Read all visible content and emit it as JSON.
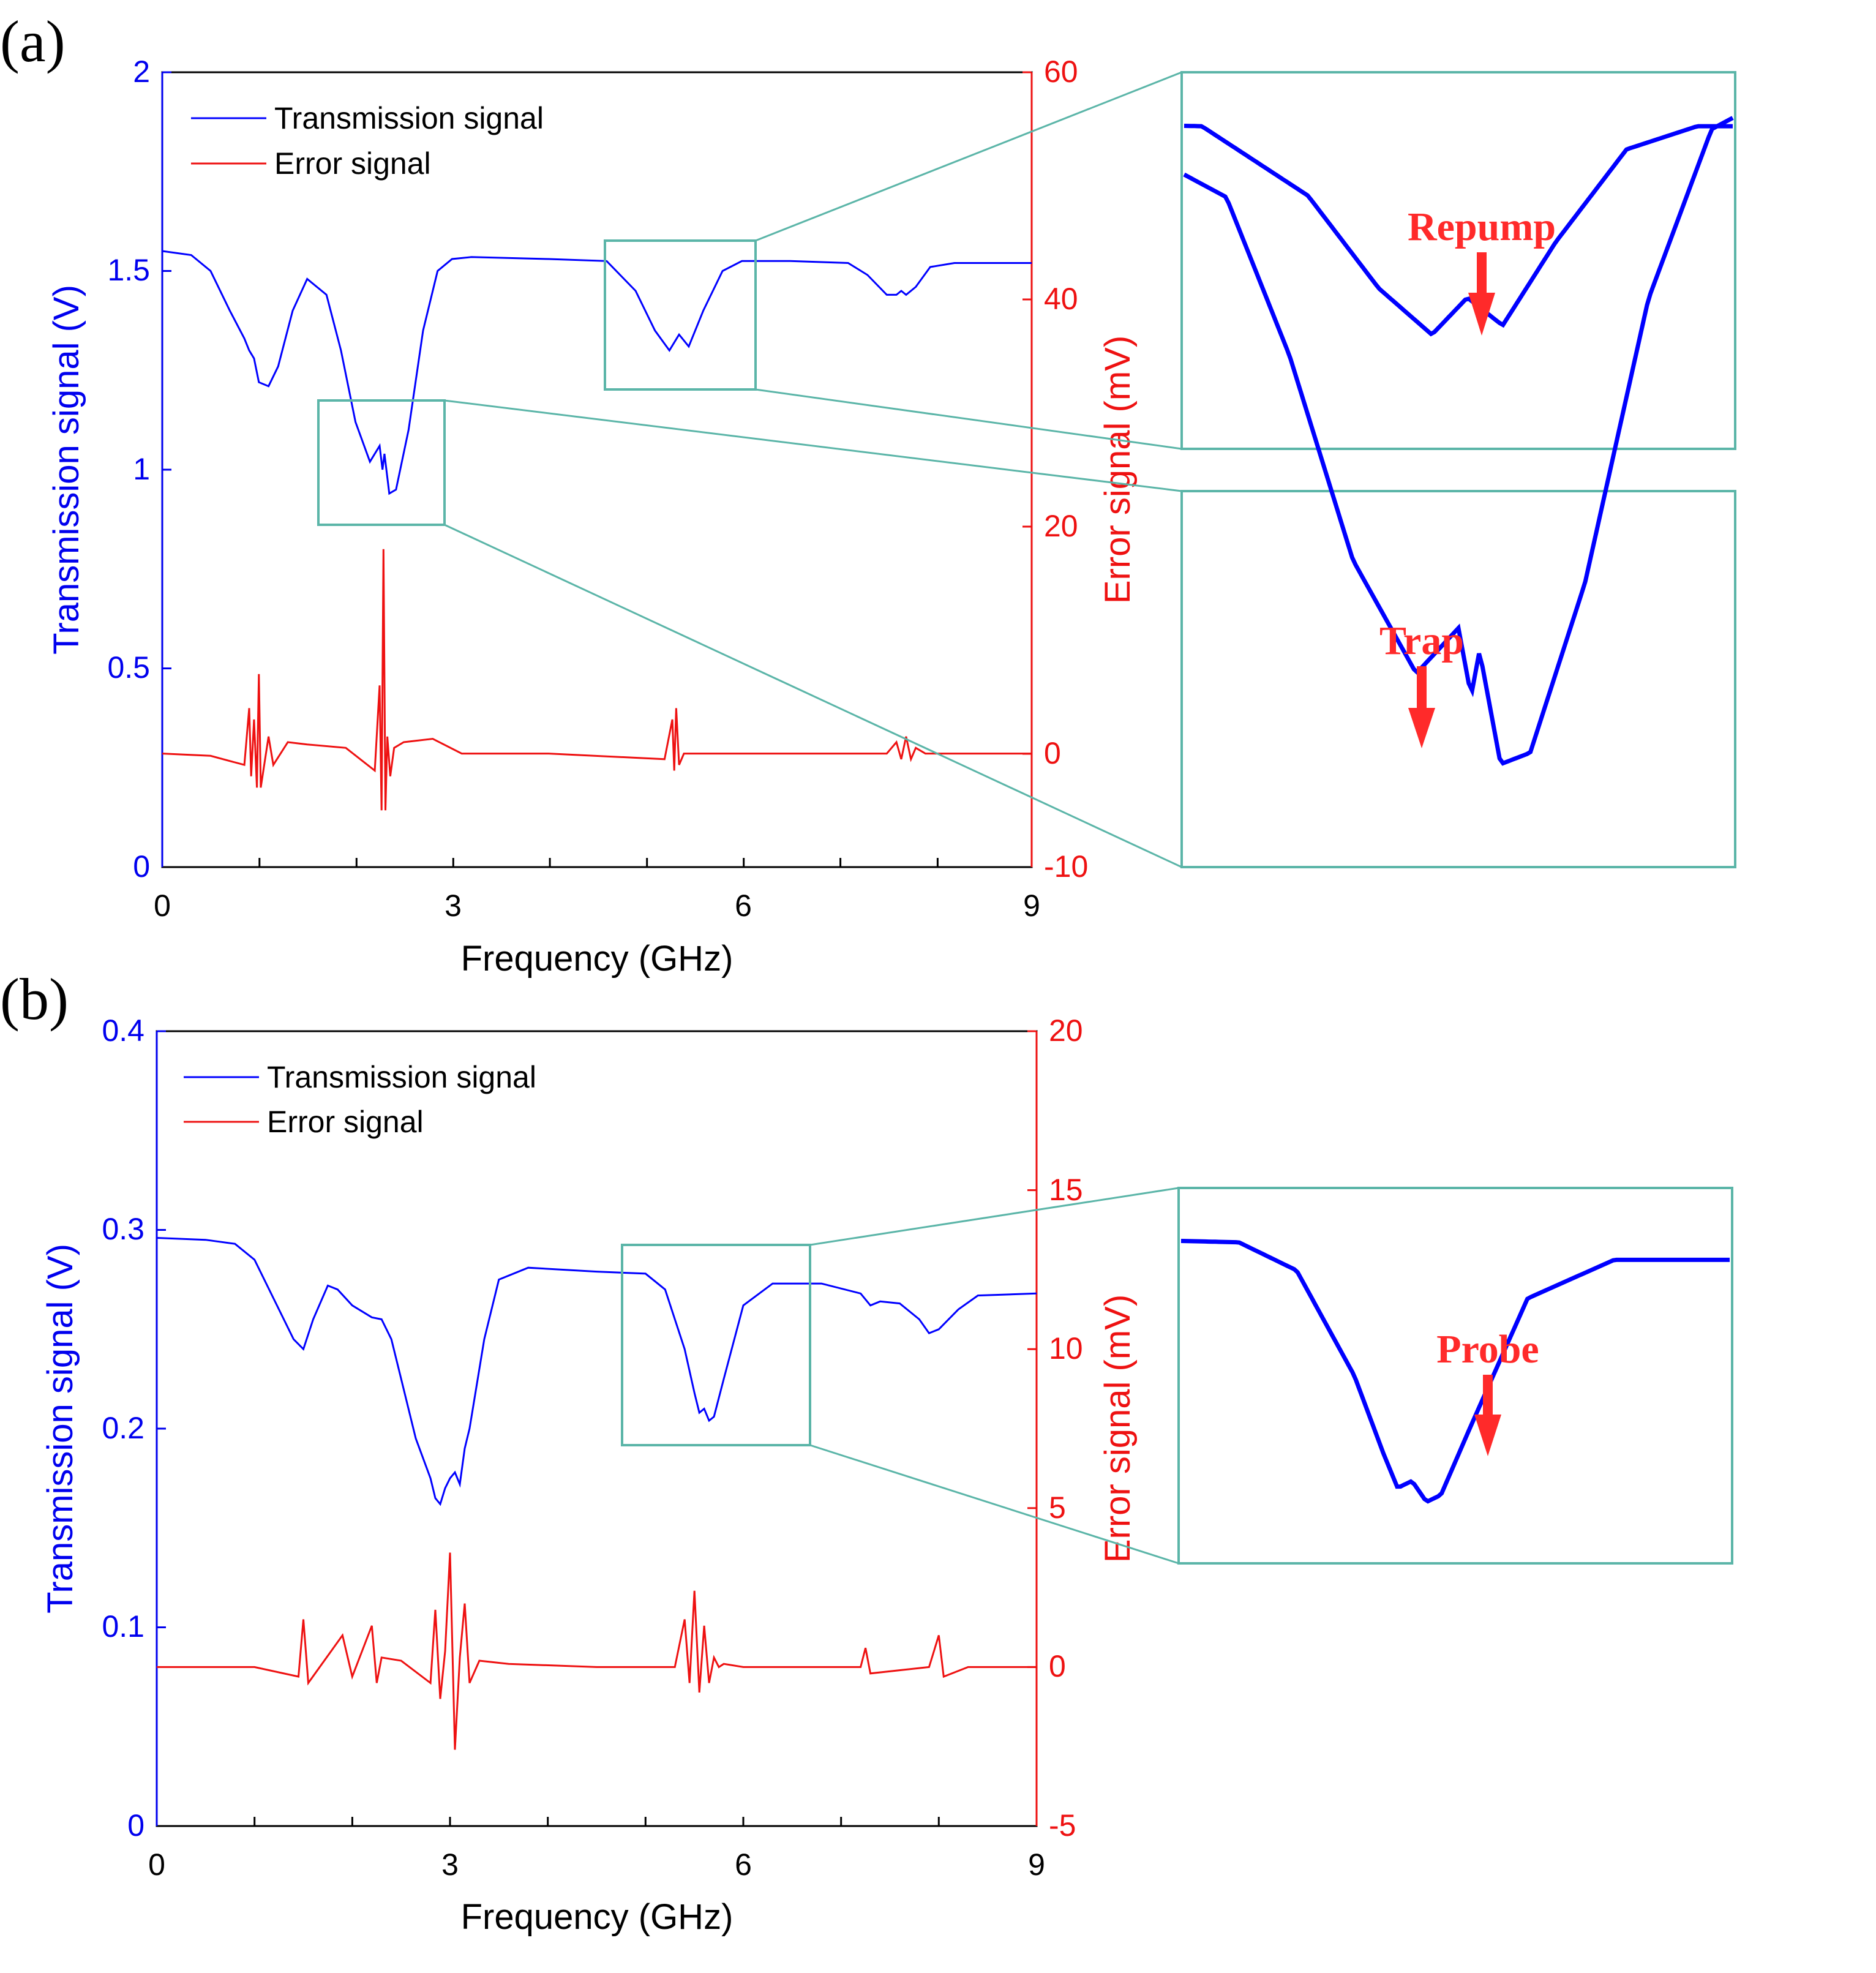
{
  "figure": {
    "panel_a_label": "(a)",
    "panel_b_label": "(b)"
  },
  "colors": {
    "transmission": "#0000ff",
    "error": "#ee1111",
    "inset_box": "#5bb5a8",
    "annotation": "#ff2a2a",
    "axis": "#000000"
  },
  "chart_data": [
    {
      "id": "a",
      "type": "line",
      "xlabel": "Frequency (GHz)",
      "ylabel_left": "Transmission signal (V)",
      "ylabel_right": "Error signal (mV)",
      "xlim": [
        0,
        9
      ],
      "ylim_left": [
        0,
        2
      ],
      "ylim_right": [
        -10,
        60
      ],
      "xticks": [
        "0",
        "3",
        "6",
        "9"
      ],
      "yticks_left": [
        "0",
        "0.5",
        "1",
        "1.5",
        "2"
      ],
      "yticks_right": [
        "-10",
        "0",
        "20",
        "40",
        "60"
      ],
      "legend_position": "top-left",
      "series": [
        {
          "name": "Transmission signal",
          "axis": "left",
          "x": [
            0,
            0.3,
            0.5,
            0.7,
            0.85,
            0.9,
            0.95,
            1.0,
            1.1,
            1.2,
            1.35,
            1.5,
            1.7,
            1.85,
            2.0,
            2.15,
            2.25,
            2.28,
            2.3,
            2.35,
            2.42,
            2.55,
            2.7,
            2.85,
            3.0,
            3.2,
            4.0,
            4.6,
            4.9,
            5.1,
            5.25,
            5.3,
            5.35,
            5.45,
            5.6,
            5.8,
            6.0,
            6.5,
            7.1,
            7.3,
            7.5,
            7.6,
            7.65,
            7.7,
            7.8,
            7.95,
            8.2,
            9.0
          ],
          "values": [
            1.55,
            1.54,
            1.5,
            1.4,
            1.33,
            1.3,
            1.28,
            1.22,
            1.21,
            1.26,
            1.4,
            1.48,
            1.44,
            1.3,
            1.12,
            1.02,
            1.06,
            1.0,
            1.04,
            0.94,
            0.95,
            1.1,
            1.35,
            1.5,
            1.53,
            1.535,
            1.53,
            1.525,
            1.45,
            1.35,
            1.3,
            1.32,
            1.34,
            1.31,
            1.4,
            1.5,
            1.525,
            1.525,
            1.52,
            1.49,
            1.44,
            1.44,
            1.45,
            1.44,
            1.46,
            1.51,
            1.52,
            1.52
          ]
        },
        {
          "name": "Error signal",
          "axis": "right",
          "x": [
            0,
            0.5,
            0.85,
            0.9,
            0.92,
            0.95,
            0.98,
            1.0,
            1.02,
            1.1,
            1.15,
            1.3,
            1.5,
            1.9,
            2.2,
            2.25,
            2.27,
            2.29,
            2.31,
            2.33,
            2.36,
            2.4,
            2.5,
            2.8,
            3.1,
            4.0,
            5.2,
            5.28,
            5.3,
            5.32,
            5.35,
            5.4,
            6.0,
            7.5,
            7.6,
            7.65,
            7.7,
            7.75,
            7.8,
            7.9,
            8.5,
            9.0
          ],
          "values": [
            0,
            -0.2,
            -1,
            4,
            -2,
            3,
            -3,
            7,
            -3,
            1.5,
            -1,
            1,
            0.8,
            0.5,
            -1.5,
            6,
            -5,
            18,
            -5,
            1.5,
            -2,
            0.5,
            1,
            1.3,
            0,
            0,
            -0.5,
            3,
            -1.5,
            4,
            -1,
            0,
            0,
            0,
            1,
            -0.5,
            1.5,
            -0.5,
            0.5,
            0,
            0,
            0
          ]
        }
      ],
      "insets": [
        {
          "label": "Repump",
          "xlim": [
            4.55,
            6.1
          ],
          "ylim": [
            1.19,
            1.57
          ]
        },
        {
          "label": "Trap",
          "xlim": [
            1.6,
            2.9
          ],
          "ylim": [
            0.86,
            1.17
          ]
        }
      ]
    },
    {
      "id": "b",
      "type": "line",
      "xlabel": "Frequency (GHz)",
      "ylabel_left": "Transmission signal (V)",
      "ylabel_right": "Error signal (mV)",
      "xlim": [
        0,
        9
      ],
      "ylim_left": [
        0,
        0.4
      ],
      "ylim_right": [
        -5,
        20
      ],
      "xticks": [
        "0",
        "3",
        "6",
        "9"
      ],
      "yticks_left": [
        "0",
        "0.1",
        "0.2",
        "0.3",
        "0.4"
      ],
      "yticks_right": [
        "-5",
        "0",
        "5",
        "10",
        "15",
        "20"
      ],
      "legend_position": "top-left",
      "series": [
        {
          "name": "Transmission signal",
          "axis": "left",
          "x": [
            0,
            0.5,
            0.8,
            1.0,
            1.2,
            1.4,
            1.5,
            1.6,
            1.75,
            1.85,
            2.0,
            2.2,
            2.3,
            2.4,
            2.5,
            2.65,
            2.8,
            2.85,
            2.9,
            2.95,
            3.0,
            3.05,
            3.1,
            3.15,
            3.2,
            3.35,
            3.5,
            3.8,
            4.5,
            5.0,
            5.2,
            5.4,
            5.5,
            5.55,
            5.6,
            5.65,
            5.7,
            5.8,
            6.0,
            6.3,
            6.8,
            7.2,
            7.3,
            7.4,
            7.6,
            7.8,
            7.9,
            8.0,
            8.2,
            8.4,
            9.0
          ],
          "values": [
            0.296,
            0.295,
            0.293,
            0.285,
            0.265,
            0.245,
            0.24,
            0.255,
            0.272,
            0.27,
            0.262,
            0.256,
            0.255,
            0.245,
            0.225,
            0.195,
            0.175,
            0.165,
            0.162,
            0.17,
            0.175,
            0.178,
            0.172,
            0.19,
            0.2,
            0.245,
            0.275,
            0.281,
            0.279,
            0.278,
            0.27,
            0.24,
            0.218,
            0.208,
            0.21,
            0.204,
            0.206,
            0.225,
            0.262,
            0.273,
            0.273,
            0.268,
            0.262,
            0.264,
            0.263,
            0.255,
            0.248,
            0.25,
            0.26,
            0.267,
            0.268
          ]
        },
        {
          "name": "Error signal",
          "axis": "right",
          "x": [
            0,
            1.0,
            1.45,
            1.5,
            1.55,
            1.9,
            2.0,
            2.2,
            2.25,
            2.3,
            2.5,
            2.8,
            2.85,
            2.9,
            2.95,
            3.0,
            3.05,
            3.1,
            3.15,
            3.2,
            3.3,
            3.6,
            4.5,
            5.3,
            5.4,
            5.45,
            5.5,
            5.55,
            5.6,
            5.65,
            5.7,
            5.75,
            5.8,
            6.0,
            7.0,
            7.2,
            7.25,
            7.3,
            7.9,
            8.0,
            8.05,
            8.3,
            9.0
          ],
          "values": [
            0,
            0,
            -0.3,
            1.5,
            -0.5,
            1,
            -0.3,
            1.3,
            -0.5,
            0.3,
            0.2,
            -0.5,
            1.8,
            -1,
            0.5,
            3.6,
            -2.6,
            0.3,
            2,
            -0.5,
            0.2,
            0.1,
            0,
            0,
            1.5,
            -0.5,
            2.4,
            -0.8,
            1.3,
            -0.5,
            0.3,
            0,
            0.1,
            0,
            0,
            0,
            0.6,
            -0.2,
            0,
            1,
            -0.3,
            0,
            0
          ]
        }
      ],
      "insets": [
        {
          "label": "Probe",
          "xlim": [
            4.8,
            6.7
          ],
          "ylim": [
            0.19,
            0.29
          ]
        }
      ]
    }
  ]
}
